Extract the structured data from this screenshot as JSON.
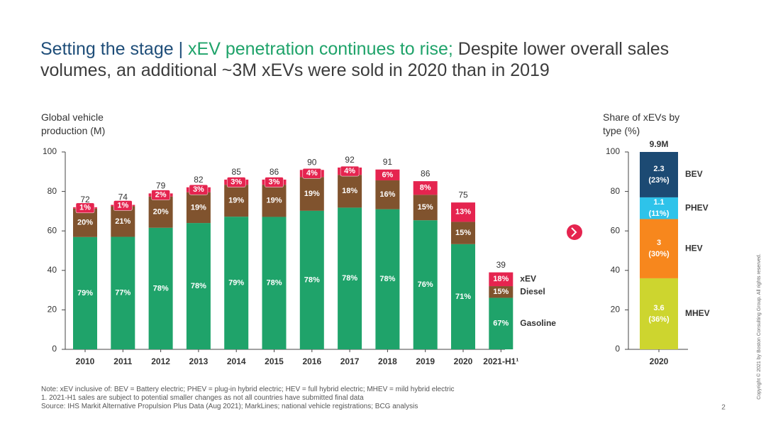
{
  "title": [
    "Setting the stage | ",
    "xEV penetration continues to rise;",
    " Despite lower overall sales volumes, an additional ~3M xEVs were sold in 2020 than in 2019"
  ],
  "notes": [
    "Note: xEV inclusive of: BEV = Battery electric; PHEV = plug-in hybrid electric; HEV = full hybrid electric; MHEV = mild hybrid electric",
    "1. 2021-H1 sales are subject to potential smaller changes as not all countries have submitted final data",
    "Source: IHS Markit Alternative Propulsion Plus Data (Aug 2021); MarkLines; national vehicle registrations; BCG analysis"
  ],
  "copyright": "Copyright © 2021 by Boston Consulting Group. All rights reserved.",
  "page_number": "2",
  "chart_data": [
    {
      "type": "bar",
      "stacked": true,
      "y_label": "Global vehicle production (M)",
      "categories": [
        "2010",
        "2011",
        "2012",
        "2013",
        "2014",
        "2015",
        "2016",
        "2017",
        "2018",
        "2019",
        "2020",
        "2021-H1¹"
      ],
      "totals": [
        72,
        74,
        79,
        82,
        85,
        86,
        90,
        92,
        91,
        86,
        75,
        39
      ],
      "ylim": [
        0,
        100
      ],
      "yticks": [
        0,
        20,
        40,
        60,
        80,
        100
      ],
      "series": [
        {
          "name": "Gasoline",
          "color": "#1fa36a",
          "values": [
            56.9,
            57.0,
            61.6,
            64.0,
            67.2,
            67.1,
            70.2,
            71.8,
            71.0,
            65.4,
            53.3,
            26.1
          ],
          "share_labels": [
            "79%",
            "77%",
            "78%",
            "78%",
            "79%",
            "78%",
            "78%",
            "78%",
            "78%",
            "76%",
            "71%",
            "67%"
          ]
        },
        {
          "name": "Diesel",
          "color": "#80532e",
          "values": [
            14.4,
            15.5,
            15.8,
            15.6,
            16.2,
            16.3,
            17.1,
            16.6,
            14.6,
            12.9,
            11.3,
            5.9
          ],
          "share_labels": [
            "20%",
            "21%",
            "20%",
            "19%",
            "19%",
            "19%",
            "19%",
            "18%",
            "16%",
            "15%",
            "15%",
            "15%"
          ]
        },
        {
          "name": "xEV",
          "color": "#e5244f",
          "values": [
            0.7,
            0.7,
            1.6,
            2.5,
            2.6,
            2.6,
            3.6,
            3.7,
            5.5,
            6.9,
            9.8,
            7.0
          ],
          "share_labels": [
            "1%",
            "1%",
            "2%",
            "3%",
            "3%",
            "3%",
            "4%",
            "4%",
            "6%",
            "8%",
            "13%",
            "18%"
          ]
        }
      ]
    },
    {
      "type": "bar",
      "stacked": true,
      "y_label": "Share of xEVs by type (%)",
      "categories": [
        "2020"
      ],
      "total_label": "9.9M",
      "ylim": [
        0,
        100
      ],
      "yticks": [
        0,
        20,
        40,
        60,
        80,
        100
      ],
      "series": [
        {
          "name": "MHEV",
          "color": "#cdd52f",
          "values": [
            36
          ],
          "volumes": [
            3.6
          ],
          "value_labels": [
            "(36%)"
          ]
        },
        {
          "name": "HEV",
          "color": "#f7871d",
          "values": [
            30
          ],
          "volumes": [
            3.0
          ],
          "value_labels": [
            "(30%)"
          ]
        },
        {
          "name": "PHEV",
          "color": "#2ec3ea",
          "values": [
            11
          ],
          "volumes": [
            1.1
          ],
          "value_labels": [
            "(11%)"
          ]
        },
        {
          "name": "BEV",
          "color": "#1c4a73",
          "values": [
            23
          ],
          "volumes": [
            2.3
          ],
          "value_labels": [
            "(23%)"
          ]
        }
      ]
    }
  ]
}
